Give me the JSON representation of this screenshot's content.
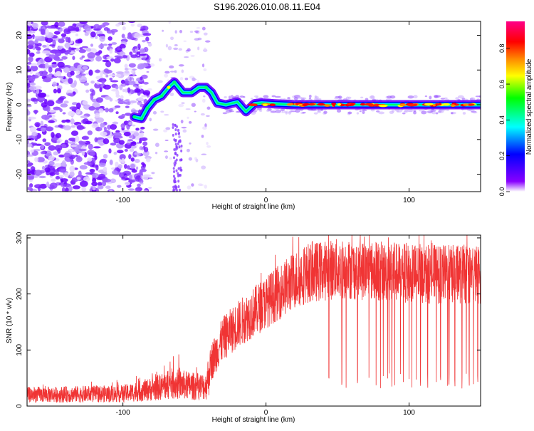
{
  "title": "S196.2026.010.08.11.E04",
  "chart_data": [
    {
      "type": "heatmap",
      "xlabel": "Height of straight line (km)",
      "ylabel": "Frequency (Hz)",
      "xlim": [
        -167,
        150
      ],
      "ylim": [
        -25,
        24
      ],
      "xticks": [
        -100,
        0,
        100
      ],
      "yticks": [
        -20,
        -10,
        0,
        10,
        20
      ],
      "ridge": [
        {
          "x": -92,
          "y": -3.5
        },
        {
          "x": -87,
          "y": -4
        },
        {
          "x": -83,
          "y": -1
        },
        {
          "x": -78,
          "y": 1.5
        },
        {
          "x": -73,
          "y": 2.5
        },
        {
          "x": -68,
          "y": 5
        },
        {
          "x": -64,
          "y": 6.5
        },
        {
          "x": -58,
          "y": 3.5
        },
        {
          "x": -52,
          "y": 3.5
        },
        {
          "x": -47,
          "y": 5
        },
        {
          "x": -42,
          "y": 5
        },
        {
          "x": -38,
          "y": 3.5
        },
        {
          "x": -34,
          "y": 0.5
        },
        {
          "x": -28,
          "y": 0
        },
        {
          "x": -20,
          "y": 0.8
        },
        {
          "x": -14,
          "y": -2
        },
        {
          "x": -8,
          "y": 0.3
        },
        {
          "x": -3,
          "y": 0.5
        },
        {
          "x": 5,
          "y": 0.3
        },
        {
          "x": 20,
          "y": 0
        },
        {
          "x": 60,
          "y": 0
        },
        {
          "x": 100,
          "y": 0
        },
        {
          "x": 150,
          "y": 0
        }
      ],
      "colorbar": {
        "label": "Normalized spectral amplitude",
        "ticks": [
          0,
          0.2,
          0.4,
          0.6,
          0.8
        ],
        "range": [
          0,
          0.95
        ],
        "colors": [
          "#ffffff",
          "#8800ff",
          "#0000ff",
          "#00ffff",
          "#00ff00",
          "#ffff00",
          "#ff8800",
          "#ff0000",
          "#ff0088"
        ]
      }
    },
    {
      "type": "line",
      "xlabel": "Height of straight line (km)",
      "ylabel": "SNR (10 * v/v)",
      "xlim": [
        -167,
        150
      ],
      "ylim": [
        0,
        305
      ],
      "xticks": [
        -100,
        0,
        100
      ],
      "yticks": [
        0,
        100,
        200,
        300
      ],
      "color": "#f03434",
      "envelope": [
        {
          "x": -167,
          "y": 20
        },
        {
          "x": -100,
          "y": 22
        },
        {
          "x": -80,
          "y": 30
        },
        {
          "x": -65,
          "y": 40
        },
        {
          "x": -50,
          "y": 35
        },
        {
          "x": -42,
          "y": 35
        },
        {
          "x": -38,
          "y": 80
        },
        {
          "x": -30,
          "y": 120
        },
        {
          "x": -20,
          "y": 145
        },
        {
          "x": -10,
          "y": 165
        },
        {
          "x": 0,
          "y": 185
        },
        {
          "x": 10,
          "y": 205
        },
        {
          "x": 20,
          "y": 225
        },
        {
          "x": 30,
          "y": 238
        },
        {
          "x": 50,
          "y": 245
        },
        {
          "x": 80,
          "y": 240
        },
        {
          "x": 120,
          "y": 235
        },
        {
          "x": 150,
          "y": 235
        }
      ],
      "dropouts_x": [
        44,
        53,
        56,
        64,
        72,
        77,
        80,
        82,
        85,
        86,
        88,
        90,
        94,
        96,
        100,
        102,
        105,
        108,
        113,
        119,
        122,
        127,
        128,
        132,
        137,
        140,
        142,
        145,
        148
      ]
    }
  ]
}
